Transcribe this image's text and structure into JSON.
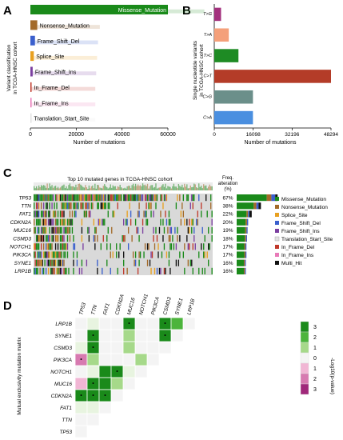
{
  "panels": {
    "A": {
      "letter": "A"
    },
    "B": {
      "letter": "B"
    },
    "C": {
      "letter": "C"
    },
    "D": {
      "letter": "D"
    }
  },
  "colors": {
    "Missense_Mutation": "#1a8a1a",
    "Nonsense_Mutation": "#a36a2a",
    "Splice_Site": "#e8a020",
    "Frame_Shift_Del": "#3a5fcd",
    "Frame_Shift_Ins": "#7b3fa0",
    "Translation_Start_Site": "#e2e2e2",
    "In_Frame_Del": "#c0392b",
    "In_Frame_Ins": "#e87ab8",
    "Multi_Hit": "#111111",
    "T>G": "#a3317d",
    "T>A": "#f4a07a",
    "T>C": "#1e8b24",
    "C>T": "#b43c28",
    "C>G": "#6b8f8a",
    "C>A": "#4a8fe0",
    "heat_pos3": "#1a8a1a",
    "heat_pos2": "#4cb43c",
    "heat_pos1": "#a6d98a",
    "heat_zero": "#f4f4f4",
    "heat_neg1": "#f1b6d4",
    "heat_neg2": "#d77ab0",
    "heat_neg3": "#a0287a",
    "oncoprint_bg": "#d9d9d9"
  },
  "chart_data": [
    {
      "type": "bar",
      "orientation": "horizontal",
      "panel": "A",
      "categories": [
        "Missense_Mutation",
        "Nonsense_Mutation",
        "Frame_Shift_Del",
        "Splice_Site",
        "Frame_Shift_Ins",
        "In_Frame_Del",
        "In_Frame_Ins",
        "Translation_Start_Site"
      ],
      "values": [
        60000,
        3000,
        2000,
        1500,
        1000,
        500,
        300,
        50
      ],
      "xlabel": "Number of mutations",
      "ylabel_line1": "Variant classification",
      "ylabel_line2": "in TCGA-HNSC cohort",
      "xticks": [
        0,
        20000,
        40000,
        60000
      ],
      "xlim": [
        0,
        60000
      ]
    },
    {
      "type": "bar",
      "orientation": "horizontal",
      "panel": "B",
      "categories": [
        "T>G",
        "T>A",
        "T>C",
        "C>T",
        "C>G",
        "C>A"
      ],
      "values": [
        2800,
        6000,
        10000,
        48294,
        16000,
        16000
      ],
      "xlabel": "Number of mutations",
      "ylabel_line1": "Single nucleotide variants",
      "ylabel_line2": "in TCGA-HNSC cohort",
      "xticks": [
        0,
        16098,
        32196,
        48294
      ],
      "xlim": [
        0,
        48294
      ]
    },
    {
      "type": "table",
      "panel": "C",
      "title": "Top 10 mutated genes in TCGA-HNSC cohort",
      "freq_header_line1": "Freq.",
      "freq_header_line2": "alteration",
      "freq_header_line3": "(%)",
      "genes": [
        "TP53",
        "TTN",
        "FAT1",
        "CDKN2A",
        "MUC16",
        "CSMD3",
        "NOTCH1",
        "PIK3CA",
        "SYNE1",
        "LRP1B"
      ],
      "frequencies": [
        "67%",
        "38%",
        "22%",
        "20%",
        "19%",
        "18%",
        "17%",
        "17%",
        "16%",
        "16%"
      ],
      "legend": [
        "Missense_Mutation",
        "Nonsense_Mutation",
        "Splice_Site",
        "Frame_Shift_Del",
        "Frame_Shift_Ins",
        "Translation_Start_Site",
        "In_Frame_Del",
        "In_Frame_Ins",
        "Multi_Hit"
      ]
    },
    {
      "type": "heatmap",
      "panel": "D",
      "ylabel": "Mutual exclusivity mutation matrix",
      "genes_top": [
        "TP53",
        "TTN",
        "FAT1",
        "CDKN2A",
        "MUC16",
        "NOTCH1",
        "PIK3CA",
        "CSMD3",
        "SYNE1",
        "LRP1B"
      ],
      "genes_left": [
        "LRP1B",
        "SYNE1",
        "CSMD3",
        "PIK3CA",
        "NOTCH1",
        "MUC16",
        "CDKN2A",
        "FAT1",
        "TTN",
        "TP53"
      ],
      "colorbar_label": "-Log10(p-value)",
      "colorbar_ticks": [
        "3",
        "2",
        "1",
        "0",
        "1",
        "2",
        "3"
      ],
      "cells": [
        {
          "row": "LRP1B",
          "col": "TTN",
          "v": 0
        },
        {
          "row": "LRP1B",
          "col": "MUC16",
          "v": 3,
          "dot": true
        },
        {
          "row": "LRP1B",
          "col": "CSMD3",
          "v": 3,
          "dot": true
        },
        {
          "row": "LRP1B",
          "col": "SYNE1",
          "v": 2
        },
        {
          "row": "SYNE1",
          "col": "TTN",
          "v": 3,
          "dot": true
        },
        {
          "row": "SYNE1",
          "col": "MUC16",
          "v": 1
        },
        {
          "row": "SYNE1",
          "col": "CSMD3",
          "v": 3,
          "dot": true
        },
        {
          "row": "CSMD3",
          "col": "TP53",
          "v": 0
        },
        {
          "row": "CSMD3",
          "col": "TTN",
          "v": 3,
          "dot": true
        },
        {
          "row": "CSMD3",
          "col": "MUC16",
          "v": 1
        },
        {
          "row": "PIK3CA",
          "col": "TP53",
          "v": -2,
          "dot": true
        },
        {
          "row": "PIK3CA",
          "col": "TTN",
          "v": 1
        },
        {
          "row": "PIK3CA",
          "col": "NOTCH1",
          "v": 1
        },
        {
          "row": "NOTCH1",
          "col": "TTN",
          "v": 0
        },
        {
          "row": "NOTCH1",
          "col": "FAT1",
          "v": 3
        },
        {
          "row": "NOTCH1",
          "col": "CDKN2A",
          "v": 3,
          "dot": true
        },
        {
          "row": "NOTCH1",
          "col": "MUC16",
          "v": 0
        },
        {
          "row": "MUC16",
          "col": "TP53",
          "v": -1
        },
        {
          "row": "MUC16",
          "col": "TTN",
          "v": 3,
          "dot": true
        },
        {
          "row": "MUC16",
          "col": "FAT1",
          "v": 3
        },
        {
          "row": "MUC16",
          "col": "CDKN2A",
          "v": 1
        },
        {
          "row": "CDKN2A",
          "col": "TP53",
          "v": 3,
          "dot": true
        },
        {
          "row": "CDKN2A",
          "col": "TTN",
          "v": 3,
          "dot": true
        },
        {
          "row": "CDKN2A",
          "col": "FAT1",
          "v": 3,
          "dot": true
        },
        {
          "row": "FAT1",
          "col": "TP53",
          "v": 0
        },
        {
          "row": "FAT1",
          "col": "TTN",
          "v": 0
        }
      ]
    }
  ]
}
